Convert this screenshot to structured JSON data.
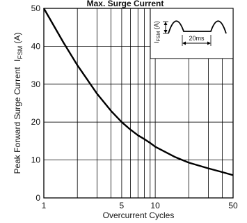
{
  "chart_data": {
    "type": "line",
    "title": "Max. Surge Current",
    "xlabel": "Overcurrent Cycles",
    "ylabel": "Peak Forward Surge Current",
    "ylabel_unit": "I",
    "ylabel_unit_sub": "FSM",
    "ylabel_unit_suffix": " (A)",
    "x_scale": "log",
    "xlim": [
      1,
      50
    ],
    "ylim": [
      0,
      50
    ],
    "x_ticks": [
      1,
      5,
      10,
      50
    ],
    "x_tick_labels": [
      "1",
      "5",
      "10",
      "50"
    ],
    "x_minor": [
      2,
      3,
      4,
      6,
      7,
      8,
      9,
      20,
      30,
      40
    ],
    "y_ticks": [
      0,
      10,
      20,
      30,
      40,
      50
    ],
    "y_tick_labels": [
      "0",
      "10",
      "20",
      "30",
      "40",
      "50"
    ],
    "grid": true,
    "series": [
      {
        "x": [
          1,
          1.5,
          2,
          3,
          4,
          5,
          6,
          7,
          8,
          9,
          10,
          15,
          20,
          30,
          40,
          50
        ],
        "y": [
          50,
          41,
          35,
          27.5,
          23,
          20,
          18,
          16.5,
          15.5,
          14.5,
          13.5,
          10.8,
          9.3,
          7.8,
          6.8,
          6
        ]
      }
    ],
    "inset": {
      "ylabel_main": "I",
      "ylabel_sub": "FSM",
      "ylabel_suffix": " (A)",
      "period_label": "20ms"
    }
  }
}
